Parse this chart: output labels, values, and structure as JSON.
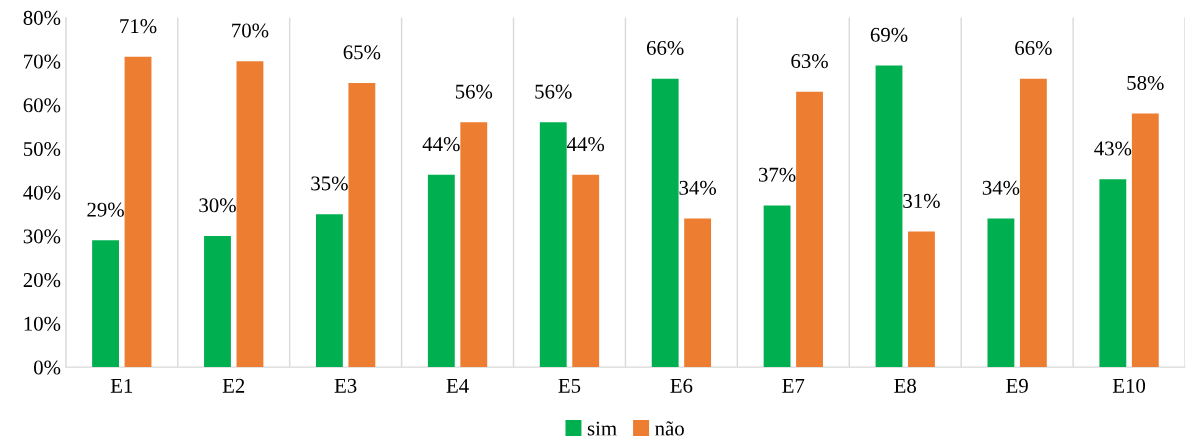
{
  "chart_data": {
    "type": "bar",
    "categories": [
      "E1",
      "E2",
      "E3",
      "E4",
      "E5",
      "E6",
      "E7",
      "E8",
      "E9",
      "E10"
    ],
    "series": [
      {
        "name": "sim",
        "color": "#00b050",
        "values": [
          29,
          30,
          35,
          44,
          56,
          66,
          37,
          69,
          34,
          43
        ],
        "value_labels": [
          "29%",
          "30%",
          "35%",
          "44%",
          "56%",
          "66%",
          "37%",
          "69%",
          "34%",
          "43%"
        ]
      },
      {
        "name": "não",
        "color": "#ed7d31",
        "values": [
          71,
          70,
          65,
          56,
          44,
          34,
          63,
          31,
          66,
          58
        ],
        "value_labels": [
          "71%",
          "70%",
          "65%",
          "56%",
          "44%",
          "34%",
          "63%",
          "31%",
          "66%",
          "58%"
        ]
      }
    ],
    "ylim": [
      0,
      80
    ],
    "yticks": [
      {
        "value": 0,
        "label": "0%"
      },
      {
        "value": 10,
        "label": "10%"
      },
      {
        "value": 20,
        "label": "20%"
      },
      {
        "value": 30,
        "label": "30%"
      },
      {
        "value": 40,
        "label": "40%"
      },
      {
        "value": 50,
        "label": "50%"
      },
      {
        "value": 60,
        "label": "60%"
      },
      {
        "value": 70,
        "label": "70%"
      },
      {
        "value": 80,
        "label": "80%"
      }
    ],
    "grid": "x",
    "legend": "bottom"
  }
}
